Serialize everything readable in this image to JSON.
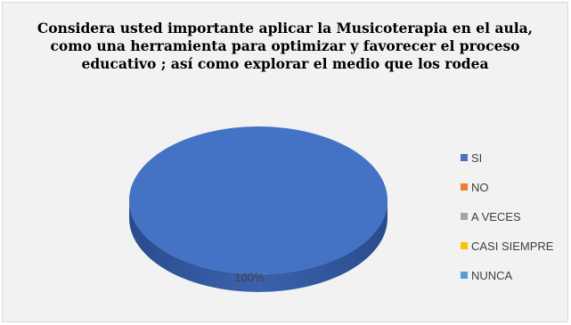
{
  "chart_data": {
    "type": "pie",
    "title": "Considera usted importante aplicar la Musicoterapia en el aula, como una herramienta para optimizar y favorecer el proceso educativo ; así como explorar el medio que los rodea",
    "categories": [
      "SI",
      "NO",
      "A VECES",
      "CASI SIEMPRE",
      "NUNCA"
    ],
    "values": [
      100,
      0,
      0,
      0,
      0
    ],
    "data_labels": [
      "100%"
    ],
    "legend_position": "right",
    "colors": [
      "#4472c4",
      "#ed7d31",
      "#a5a5a5",
      "#ffc000",
      "#5b9bd5"
    ]
  }
}
